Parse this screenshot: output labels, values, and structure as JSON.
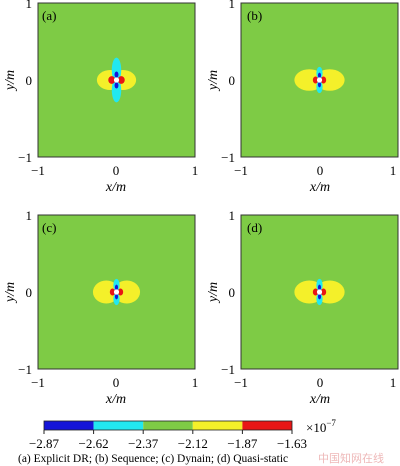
{
  "chart_data": [
    {
      "type": "heatmap",
      "panel_label": "(a)",
      "xlabel": "x/m",
      "ylabel": "y/m",
      "xlim": [
        -1,
        1
      ],
      "ylim": [
        -1,
        1
      ],
      "xticks": [
        "−1",
        "0",
        "1"
      ],
      "yticks": [
        "1",
        "0",
        "−1"
      ],
      "background_value": -2.37,
      "features": [
        {
          "level": "yellow",
          "x": -0.08,
          "y": 0.0,
          "rx": 0.17,
          "ry": 0.13
        },
        {
          "level": "yellow",
          "x": 0.08,
          "y": 0.0,
          "rx": 0.17,
          "ry": 0.13
        },
        {
          "level": "cyan",
          "x": 0.0,
          "y": 0.13,
          "rx": 0.06,
          "ry": 0.16
        },
        {
          "level": "cyan",
          "x": 0.0,
          "y": -0.13,
          "rx": 0.06,
          "ry": 0.16
        },
        {
          "level": "blue",
          "x": 0.0,
          "y": 0.07,
          "rx": 0.025,
          "ry": 0.04
        },
        {
          "level": "blue",
          "x": 0.0,
          "y": -0.07,
          "rx": 0.025,
          "ry": 0.04
        },
        {
          "level": "red",
          "x": -0.06,
          "y": 0.0,
          "rx": 0.045,
          "ry": 0.05
        },
        {
          "level": "red",
          "x": 0.06,
          "y": 0.0,
          "rx": 0.045,
          "ry": 0.05
        }
      ]
    },
    {
      "type": "heatmap",
      "panel_label": "(b)",
      "xlabel": "x/m",
      "ylabel": "y/m",
      "xlim": [
        -1,
        1
      ],
      "ylim": [
        -1,
        1
      ],
      "xticks": [
        "−1",
        "0",
        "1"
      ],
      "yticks": [
        "1",
        "0",
        "−1"
      ],
      "background_value": -2.37,
      "features": [
        {
          "level": "yellow",
          "x": -0.13,
          "y": 0.0,
          "rx": 0.19,
          "ry": 0.14
        },
        {
          "level": "yellow",
          "x": 0.13,
          "y": 0.0,
          "rx": 0.19,
          "ry": 0.14
        },
        {
          "level": "cyan",
          "x": 0.0,
          "y": 0.09,
          "rx": 0.04,
          "ry": 0.08
        },
        {
          "level": "cyan",
          "x": 0.0,
          "y": -0.09,
          "rx": 0.04,
          "ry": 0.08
        },
        {
          "level": "blue",
          "x": 0.0,
          "y": 0.06,
          "rx": 0.02,
          "ry": 0.035
        },
        {
          "level": "blue",
          "x": 0.0,
          "y": -0.06,
          "rx": 0.02,
          "ry": 0.035
        },
        {
          "level": "red",
          "x": -0.05,
          "y": 0.0,
          "rx": 0.035,
          "ry": 0.045
        },
        {
          "level": "red",
          "x": 0.05,
          "y": 0.0,
          "rx": 0.035,
          "ry": 0.045
        }
      ]
    },
    {
      "type": "heatmap",
      "panel_label": "(c)",
      "xlabel": "x/m",
      "ylabel": "y/m",
      "xlim": [
        -1,
        1
      ],
      "ylim": [
        -1,
        1
      ],
      "xticks": [
        "−1",
        "0",
        "1"
      ],
      "yticks": [
        "1",
        "0",
        "−1"
      ],
      "background_value": -2.37,
      "features": [
        {
          "level": "yellow",
          "x": -0.13,
          "y": 0.0,
          "rx": 0.17,
          "ry": 0.15
        },
        {
          "level": "yellow",
          "x": 0.13,
          "y": 0.0,
          "rx": 0.17,
          "ry": 0.15
        },
        {
          "level": "cyan",
          "x": 0.0,
          "y": 0.09,
          "rx": 0.04,
          "ry": 0.08
        },
        {
          "level": "cyan",
          "x": 0.0,
          "y": -0.09,
          "rx": 0.04,
          "ry": 0.08
        },
        {
          "level": "blue",
          "x": 0.0,
          "y": 0.06,
          "rx": 0.02,
          "ry": 0.035
        },
        {
          "level": "blue",
          "x": 0.0,
          "y": -0.06,
          "rx": 0.02,
          "ry": 0.035
        },
        {
          "level": "red",
          "x": -0.05,
          "y": 0.0,
          "rx": 0.035,
          "ry": 0.045
        },
        {
          "level": "red",
          "x": 0.05,
          "y": 0.0,
          "rx": 0.035,
          "ry": 0.045
        }
      ]
    },
    {
      "type": "heatmap",
      "panel_label": "(d)",
      "xlabel": "x/m",
      "ylabel": "y/m",
      "xlim": [
        -1,
        1
      ],
      "ylim": [
        -1,
        1
      ],
      "xticks": [
        "−1",
        "0",
        "1"
      ],
      "yticks": [
        "1",
        "0",
        "−1"
      ],
      "background_value": -2.37,
      "features": [
        {
          "level": "yellow",
          "x": -0.13,
          "y": 0.0,
          "rx": 0.19,
          "ry": 0.15
        },
        {
          "level": "yellow",
          "x": 0.13,
          "y": 0.0,
          "rx": 0.19,
          "ry": 0.15
        },
        {
          "level": "cyan",
          "x": 0.0,
          "y": 0.09,
          "rx": 0.04,
          "ry": 0.08
        },
        {
          "level": "cyan",
          "x": 0.0,
          "y": -0.09,
          "rx": 0.04,
          "ry": 0.08
        },
        {
          "level": "blue",
          "x": 0.0,
          "y": 0.06,
          "rx": 0.02,
          "ry": 0.035
        },
        {
          "level": "blue",
          "x": 0.0,
          "y": -0.06,
          "rx": 0.02,
          "ry": 0.035
        },
        {
          "level": "red",
          "x": -0.05,
          "y": 0.0,
          "rx": 0.035,
          "ry": 0.045
        },
        {
          "level": "red",
          "x": 0.05,
          "y": 0.0,
          "rx": 0.035,
          "ry": 0.045
        }
      ]
    }
  ],
  "colorbar": {
    "ticks": [
      "−2.87",
      "−2.62",
      "−2.37",
      "−2.12",
      "−1.87",
      "−1.63"
    ],
    "levels": [
      "blue",
      "cyan",
      "green",
      "yellow",
      "red"
    ],
    "colors": {
      "blue": "#1515d8",
      "cyan": "#22e8f0",
      "green": "#7ecb45",
      "yellow": "#f4f02a",
      "red": "#e81616"
    },
    "multiplier": "×10",
    "exponent": "−7"
  },
  "caption": "(a)  Explicit  DR;  (b)  Sequence;  (c)  Dynain; (d) Quasi-static",
  "watermark": "中国知网在线"
}
